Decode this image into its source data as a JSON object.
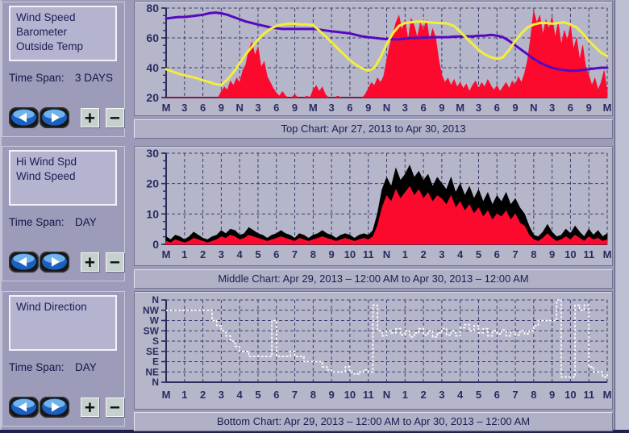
{
  "window": {
    "bg": "#9c9cba",
    "accent_blue": "#2f74d0"
  },
  "sections": [
    {
      "series_list": [
        "Wind Speed",
        "Barometer",
        "Outside Temp"
      ],
      "time_span_label": "Time Span:",
      "time_span_value": "3 DAYS",
      "caption": "Top Chart:  Apr 27, 2013  to  Apr 30, 2013"
    },
    {
      "series_list": [
        "Hi Wind Spd",
        "Wind Speed"
      ],
      "time_span_label": "Time Span:",
      "time_span_value": "DAY",
      "caption": "Middle Chart:  Apr 29, 2013 – 12:00 AM  to  Apr 30, 2013 – 12:00 AM"
    },
    {
      "series_list": [
        "Wind Direction"
      ],
      "time_span_label": "Time Span:",
      "time_span_value": "DAY",
      "caption": "Bottom Chart:  Apr 29, 2013 – 12:00 AM  to  Apr 30, 2013 – 12:00 AM"
    }
  ],
  "icons": {
    "back": "back-arrow",
    "forward": "forward-arrow",
    "zoom_in": "+",
    "zoom_out": "−"
  },
  "chart_colors": {
    "plot_bg": "#b6b6ca",
    "grid": "#3d3d70",
    "axis": "#2b2b5e",
    "label": "#2b2b62",
    "wind_speed": "#fb0a2e",
    "outside_temp": "#f2ee3e",
    "barometer": "#5708c0",
    "hi_wind": "#000000",
    "wind_dir": "#ffffff"
  },
  "chart_data": [
    {
      "type": "line",
      "title": "Top Chart: Apr 27, 2013 to Apr 30, 2013",
      "xlim": [
        0,
        72
      ],
      "x_labels": [
        "M",
        "3",
        "6",
        "9",
        "N",
        "3",
        "6",
        "9",
        "M",
        "3",
        "6",
        "9",
        "N",
        "3",
        "6",
        "9",
        "M",
        "3",
        "6",
        "9",
        "N",
        "3",
        "6",
        "9",
        "M"
      ],
      "ylim": [
        20,
        80
      ],
      "ytick_vals": [
        20,
        40,
        60,
        80
      ],
      "ytick_labels": [
        "20",
        "40",
        "60",
        "80"
      ],
      "yminor": 5,
      "grid_y": [
        40,
        60,
        80
      ],
      "ylabel_size": 14,
      "series": [
        {
          "name": "Wind Speed",
          "color": "#fb0a2e",
          "style": "area",
          "baseline": 20,
          "dt": 0.5,
          "values": [
            20,
            20,
            20,
            20,
            20,
            20,
            20,
            20,
            20,
            20,
            20,
            20,
            20,
            20,
            20,
            20,
            20,
            20,
            24,
            27,
            25,
            31,
            28,
            33,
            30,
            38,
            42,
            52,
            57,
            48,
            54,
            40,
            44,
            34,
            30,
            26,
            23,
            21,
            24,
            21,
            20,
            20,
            22,
            20,
            20,
            20,
            21,
            20,
            25,
            28,
            24,
            27,
            22,
            20,
            20,
            20,
            21,
            20,
            20,
            20,
            20,
            20,
            20,
            20,
            20,
            22,
            26,
            30,
            28,
            33,
            30,
            34,
            45,
            55,
            62,
            70,
            75,
            65,
            72,
            58,
            73,
            68,
            60,
            70,
            65,
            72,
            58,
            66,
            60,
            45,
            35,
            30,
            33,
            28,
            32,
            27,
            30,
            26,
            29,
            24,
            28,
            31,
            26,
            30,
            27,
            32,
            28,
            25,
            28,
            24,
            27,
            30,
            26,
            31,
            28,
            34,
            30,
            36,
            45,
            60,
            78,
            70,
            75,
            62,
            72,
            66,
            74,
            60,
            70,
            55,
            65,
            58,
            68,
            52,
            60,
            45,
            55,
            40,
            35,
            28,
            33,
            25,
            30,
            38,
            24
          ]
        },
        {
          "name": "Barometer",
          "color": "#5708c0",
          "style": "line",
          "width": 3,
          "dt": 1,
          "values": [
            73,
            73.5,
            74,
            74,
            74.5,
            75,
            75.5,
            76.5,
            77,
            76.5,
            75.5,
            74,
            72.5,
            71,
            70,
            69,
            68,
            67,
            66.5,
            66,
            66,
            66,
            66,
            66,
            66,
            65.5,
            65,
            64.5,
            64,
            63.5,
            63,
            62,
            61,
            60.5,
            60,
            59.5,
            59.2,
            59,
            59,
            59.5,
            60,
            60,
            60.2,
            60.3,
            60.5,
            60.5,
            60.5,
            60.8,
            61,
            61,
            61,
            61.5,
            61.5,
            62,
            61.5,
            60.5,
            58,
            55,
            52,
            49,
            46,
            43.5,
            41.5,
            40,
            39,
            38.5,
            38,
            38,
            38.5,
            39,
            39.5,
            40,
            40
          ]
        },
        {
          "name": "Outside Temp",
          "color": "#f2ee3e",
          "style": "line",
          "width": 3,
          "dt": 1,
          "values": [
            39,
            37.5,
            36,
            35,
            34,
            33,
            31.5,
            30.5,
            29,
            28.5,
            32,
            37,
            43,
            49,
            54,
            59,
            63,
            66,
            68,
            69,
            69.5,
            69.5,
            69,
            69,
            68.5,
            65,
            61,
            57,
            53,
            49,
            45,
            42,
            39.5,
            38,
            40,
            47,
            56,
            63,
            68,
            70,
            70.5,
            71,
            71,
            70.5,
            70,
            70,
            69.5,
            68,
            64,
            60,
            56,
            52,
            49,
            47,
            46,
            47,
            52,
            58,
            63,
            67,
            69,
            70,
            70,
            69.5,
            70,
            70.5,
            69,
            67,
            63,
            58,
            54,
            50,
            48
          ]
        }
      ]
    },
    {
      "type": "line",
      "title": "Middle Chart: Apr 29, 2013 - 12:00 AM to Apr 30, 2013 - 12:00 AM",
      "xlim": [
        0,
        24
      ],
      "x_labels": [
        "M",
        "1",
        "2",
        "3",
        "4",
        "5",
        "6",
        "7",
        "8",
        "9",
        "10",
        "11",
        "N",
        "1",
        "2",
        "3",
        "4",
        "5",
        "6",
        "7",
        "8",
        "9",
        "10",
        "11",
        "M"
      ],
      "ylim": [
        0,
        30
      ],
      "ytick_vals": [
        0,
        10,
        20,
        30
      ],
      "ytick_labels": [
        "0",
        "10",
        "20",
        "30"
      ],
      "yminor": 2.5,
      "grid_y": [
        10,
        20,
        30
      ],
      "ylabel_size": 14,
      "series": [
        {
          "name": "Hi Wind Spd",
          "color": "#000000",
          "style": "area",
          "baseline": 0,
          "dt": 0.25,
          "values": [
            2.5,
            1.5,
            3,
            2.5,
            1.5,
            2.5,
            4,
            3,
            2,
            1.5,
            2.5,
            3,
            4.5,
            3.5,
            5,
            4.5,
            3,
            3.5,
            5.5,
            4.5,
            3.5,
            3,
            2,
            3,
            3.5,
            4.5,
            3.5,
            3,
            2,
            3.5,
            3,
            2,
            3,
            3.5,
            4.5,
            3.5,
            3,
            2,
            3,
            3.5,
            3,
            2,
            3,
            3.5,
            3,
            4.5,
            10,
            18,
            22,
            19,
            25,
            21,
            23,
            26,
            22,
            24,
            21,
            23,
            19,
            22,
            20,
            18,
            22,
            17,
            20,
            16,
            19,
            15,
            18,
            14,
            17,
            13,
            16,
            14,
            17,
            13,
            15,
            12,
            10,
            6,
            3,
            2.5,
            4,
            6.5,
            4,
            2.5,
            3,
            5,
            3.5,
            6,
            4,
            2.5,
            5,
            3,
            4.5,
            2.5,
            3.5
          ]
        },
        {
          "name": "Wind Speed",
          "color": "#fb0a2e",
          "style": "area",
          "baseline": 0,
          "dt": 0.25,
          "values": [
            1,
            0.5,
            1.5,
            1,
            0.5,
            1,
            2,
            1.5,
            1,
            0.5,
            1,
            1.5,
            2.5,
            2,
            3,
            2.5,
            1.5,
            2,
            3,
            2.5,
            2,
            1.5,
            1,
            1.5,
            2,
            2.5,
            2,
            1.5,
            1,
            2,
            1.5,
            1,
            1.5,
            2,
            2.5,
            2,
            1.5,
            1,
            1.5,
            2,
            1.5,
            1,
            1.5,
            2,
            1.5,
            2.5,
            6,
            12,
            16,
            14,
            18,
            15,
            17,
            19,
            16,
            18,
            15,
            17,
            14,
            16,
            15,
            13,
            16,
            12,
            14,
            11,
            13,
            10,
            12,
            9,
            11,
            8,
            10,
            9,
            11,
            8,
            10,
            7,
            6,
            3,
            1.5,
            1,
            2,
            3.5,
            2,
            1,
            1.5,
            2.5,
            1.5,
            3,
            2,
            1,
            2.5,
            1.5,
            2,
            1,
            1.5
          ]
        }
      ]
    },
    {
      "type": "line",
      "title": "Bottom Chart: Apr 29, 2013 - 12:00 AM to Apr 30, 2013 - 12:00 AM (wind direction, N=8/NW=7/W=6/SW=5/S=4/SE=3/E=2/NE=1/N=0)",
      "xlim": [
        0,
        24
      ],
      "x_labels": [
        "M",
        "1",
        "2",
        "3",
        "4",
        "5",
        "6",
        "7",
        "8",
        "9",
        "10",
        "11",
        "N",
        "1",
        "2",
        "3",
        "4",
        "5",
        "6",
        "7",
        "8",
        "9",
        "10",
        "11",
        "M"
      ],
      "ylim": [
        0,
        8
      ],
      "ytick_vals": [
        8,
        7,
        6,
        5,
        4,
        3,
        2,
        1,
        0
      ],
      "ytick_labels": [
        "N",
        "NW",
        "W",
        "SW",
        "S",
        "SE",
        "E",
        "NE",
        "N"
      ],
      "yminor": 1,
      "grid_y": [
        1,
        2,
        3,
        4,
        5,
        6,
        7,
        8
      ],
      "ylabel_size": 12,
      "series": [
        {
          "name": "Wind Direction",
          "color": "#ffffff",
          "style": "step",
          "width": 1.6,
          "dash": "3,2",
          "dt": 0.25,
          "values": [
            7,
            7,
            7,
            7,
            7,
            7,
            7,
            7,
            7,
            7,
            6,
            5.5,
            5,
            4.5,
            4,
            3.5,
            3,
            3,
            2.5,
            2.5,
            2.5,
            2.5,
            2.5,
            6,
            2.5,
            2.5,
            2.5,
            3,
            2.5,
            2.5,
            2,
            2,
            2,
            2,
            1.5,
            1.2,
            1,
            1,
            1,
            1.5,
            1,
            0.8,
            1,
            1.2,
            1,
            7.5,
            5,
            4.5,
            5,
            4.8,
            5.2,
            4.6,
            5,
            4.4,
            4.8,
            5.2,
            4.6,
            5,
            4.4,
            4.8,
            5.2,
            4.6,
            5,
            4.5,
            5.3,
            5.6,
            5,
            5.5,
            4.8,
            5.2,
            4.5,
            5,
            4.7,
            5.1,
            4.5,
            4.9,
            4.6,
            5,
            4.7,
            5,
            5.5,
            6,
            6,
            6,
            6,
            8,
            0.5,
            0.5,
            0.5,
            7.5,
            7,
            7.5,
            1.5,
            1,
            1,
            0.5,
            1
          ]
        }
      ]
    }
  ]
}
